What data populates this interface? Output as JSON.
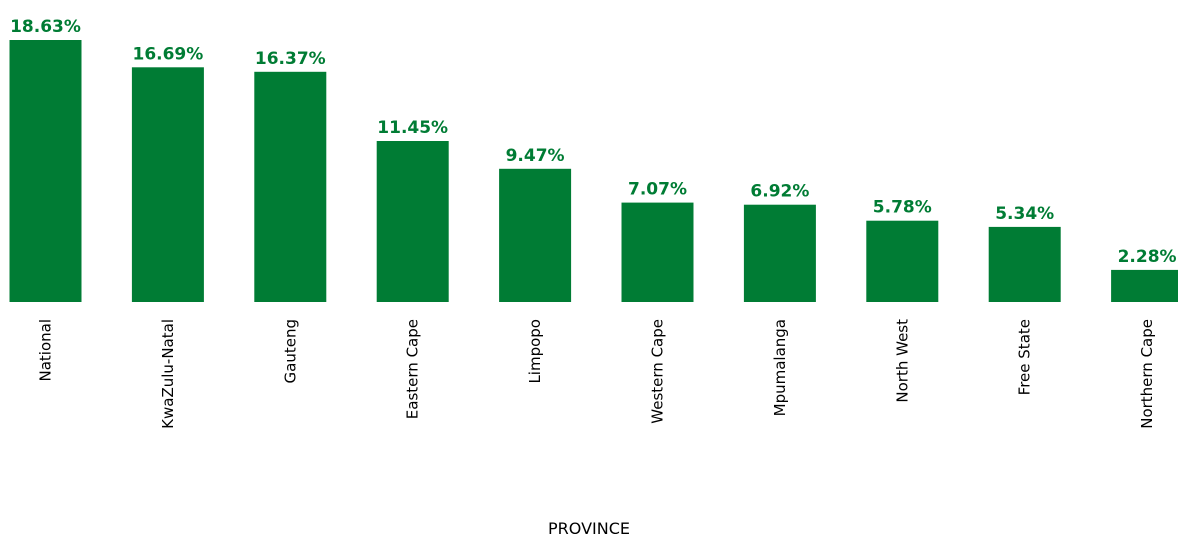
{
  "chart_data": {
    "type": "bar",
    "categories": [
      "National",
      "KwaZulu-Natal",
      "Gauteng",
      "Eastern Cape",
      "Limpopo",
      "Western Cape",
      "Mpumalanga",
      "North West",
      "Free State",
      "Northern Cape"
    ],
    "values": [
      18.63,
      16.69,
      16.37,
      11.45,
      9.47,
      7.07,
      6.92,
      5.78,
      5.34,
      2.28
    ],
    "value_labels": [
      "18.63%",
      "16.69%",
      "16.37%",
      "11.45%",
      "9.47%",
      "7.07%",
      "6.92%",
      "5.78%",
      "5.34%",
      "2.28%"
    ],
    "title": "",
    "xlabel": "PROVINCE",
    "ylabel": "",
    "ylim": [
      0,
      18.63
    ],
    "grid": false,
    "legend": "none",
    "bar_color": "#007C34",
    "label_color": "#007C34"
  }
}
